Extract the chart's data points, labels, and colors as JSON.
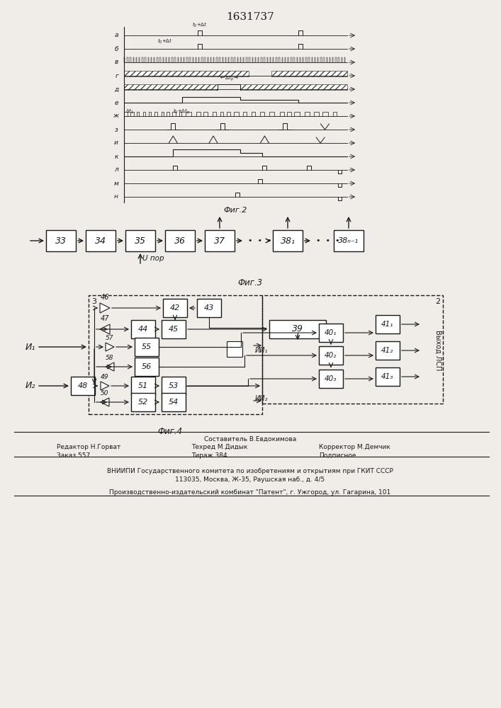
{
  "title": "1631737",
  "fig2_label": "Фиг.2",
  "fig3_label": "Фиг.3",
  "fig4_label": "Фиг.4",
  "fig3_boxes": [
    "33",
    "34",
    "35",
    "36",
    "37",
    "38₁",
    "38ₙ₋₁"
  ],
  "footer_text": [
    "Составитель В.Евдокимова",
    "Редактор Н.Горват",
    "Техред М.Дидык",
    "Корректор М.Демчик",
    "Заказ 557",
    "Тираж 384",
    "Подписное",
    "ВНИИПИ Государственного комитета по изобретениям и открытиям при ГКИТ СССР",
    "113035, Москва, Ж-35, Раушская наб., д. 4/5",
    "Производственно-издательский комбинат \"Патент\", г. Ужгород, ул. Гагарина, 101"
  ],
  "bg_color": "#f0ede8",
  "line_color": "#1a1a1a",
  "box_color": "#ffffff"
}
